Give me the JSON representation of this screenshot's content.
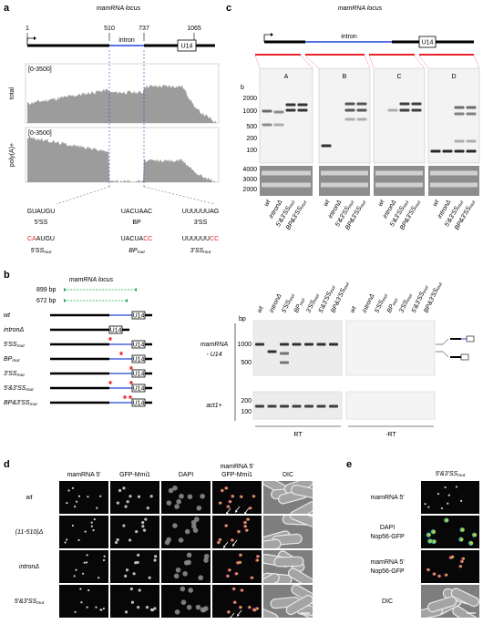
{
  "panel_a": {
    "letter": "a",
    "title": "mamRNA locus",
    "coords": [
      "1",
      "510",
      "737",
      "1065"
    ],
    "intron": "intron",
    "gene": "U14",
    "tracks": [
      {
        "name": "total",
        "range": "[0-3500]"
      },
      {
        "name": "poly(A)+",
        "range": "[0-3500]"
      }
    ],
    "sites": [
      {
        "seq": "GUAUGU",
        "name": "5'SS",
        "mut": [
          {
            "text": "CA",
            "changed": true
          },
          {
            "text": "AUGU",
            "changed": false
          }
        ],
        "mut_name": "5'SS",
        "mut_sub": "mut"
      },
      {
        "seq": "UACUAAC",
        "name": "BP",
        "mut": [
          {
            "text": "UACUA",
            "changed": false
          },
          {
            "text": "CC",
            "changed": true
          }
        ],
        "mut_name": "BP",
        "mut_sub": "mut"
      },
      {
        "seq": "UUUUUUAG",
        "name": "3'SS",
        "mut": [
          {
            "text": "UUUUUU",
            "changed": false
          },
          {
            "text": "CC",
            "changed": true
          }
        ],
        "mut_name": "3'SS",
        "mut_sub": "mut"
      }
    ],
    "mut_color": "#e8242a"
  },
  "constructs": [
    {
      "name": "wt"
    },
    {
      "name": "intronΔ"
    },
    {
      "name": "5'SS",
      "sub": "mut"
    },
    {
      "name": "BP",
      "sub": "mut"
    },
    {
      "name": "3'SS",
      "sub": "mut"
    },
    {
      "name": "5'&3'SS",
      "sub": "mut"
    },
    {
      "name": "BP&3'SS",
      "sub": "mut"
    }
  ],
  "panel_b": {
    "letter": "b",
    "title": "mamRNA locus",
    "amplicons": [
      "899 bp",
      "672 bp"
    ],
    "amplicon_color": "#1aa34a",
    "gene": "U14",
    "unit": "bp",
    "ladder_top": [
      "1000",
      "500"
    ],
    "ladder_bottom": [
      "200",
      "100"
    ],
    "bands": [
      "mamRNA",
      "- U14",
      "act1+"
    ],
    "conditions": [
      "RT",
      "-RT"
    ]
  },
  "panel_c": {
    "letter": "c",
    "title": "mamRNA locus",
    "intron": "intron",
    "gene": "U14",
    "probes": [
      "A",
      "B",
      "C",
      "D"
    ],
    "probe_color": "#e8242a",
    "unit": "b",
    "ladder": [
      "2000",
      "1000",
      "500",
      "200",
      "100"
    ],
    "ladder_rrna": [
      "4000",
      "3000",
      "2000"
    ],
    "lanes": [
      {
        "name": "wt"
      },
      {
        "name": "intronΔ"
      },
      {
        "name": "5'&3'SS",
        "sub": "mut"
      },
      {
        "name": "BP&3'SS",
        "sub": "mut"
      }
    ]
  },
  "panel_d": {
    "letter": "d",
    "columns": [
      [
        {
          "text": "mamRNA 5'"
        }
      ],
      [
        {
          "text": "GFP-Mmi1"
        }
      ],
      [
        {
          "text": "DAPI"
        }
      ],
      [
        {
          "text": "mamRNA 5'",
          "color": "#e0169a"
        },
        {
          "text": "GFP-Mmi1",
          "color": "#c8c21a"
        }
      ],
      [
        {
          "text": "DIC"
        }
      ]
    ],
    "rows": [
      {
        "name": "wt"
      },
      {
        "name": "(11-510)Δ"
      },
      {
        "name": "intronΔ"
      },
      {
        "name": "5'&3'SS",
        "sub": "mut"
      }
    ]
  },
  "panel_e": {
    "letter": "e",
    "strain": {
      "name": "5'&3'SS",
      "sub": "mut"
    },
    "rows": [
      [
        {
          "text": "mamRNA 5'"
        }
      ],
      [
        {
          "text": "DAPI",
          "color": "#2ec4d6"
        },
        {
          "text": "Nop56-GFP",
          "color": "#c8c21a"
        }
      ],
      [
        {
          "text": "mamRNA 5'",
          "color": "#e0169a"
        },
        {
          "text": "Nop56-GFP",
          "color": "#c8c21a"
        }
      ],
      [
        {
          "text": "DIC"
        }
      ]
    ]
  }
}
